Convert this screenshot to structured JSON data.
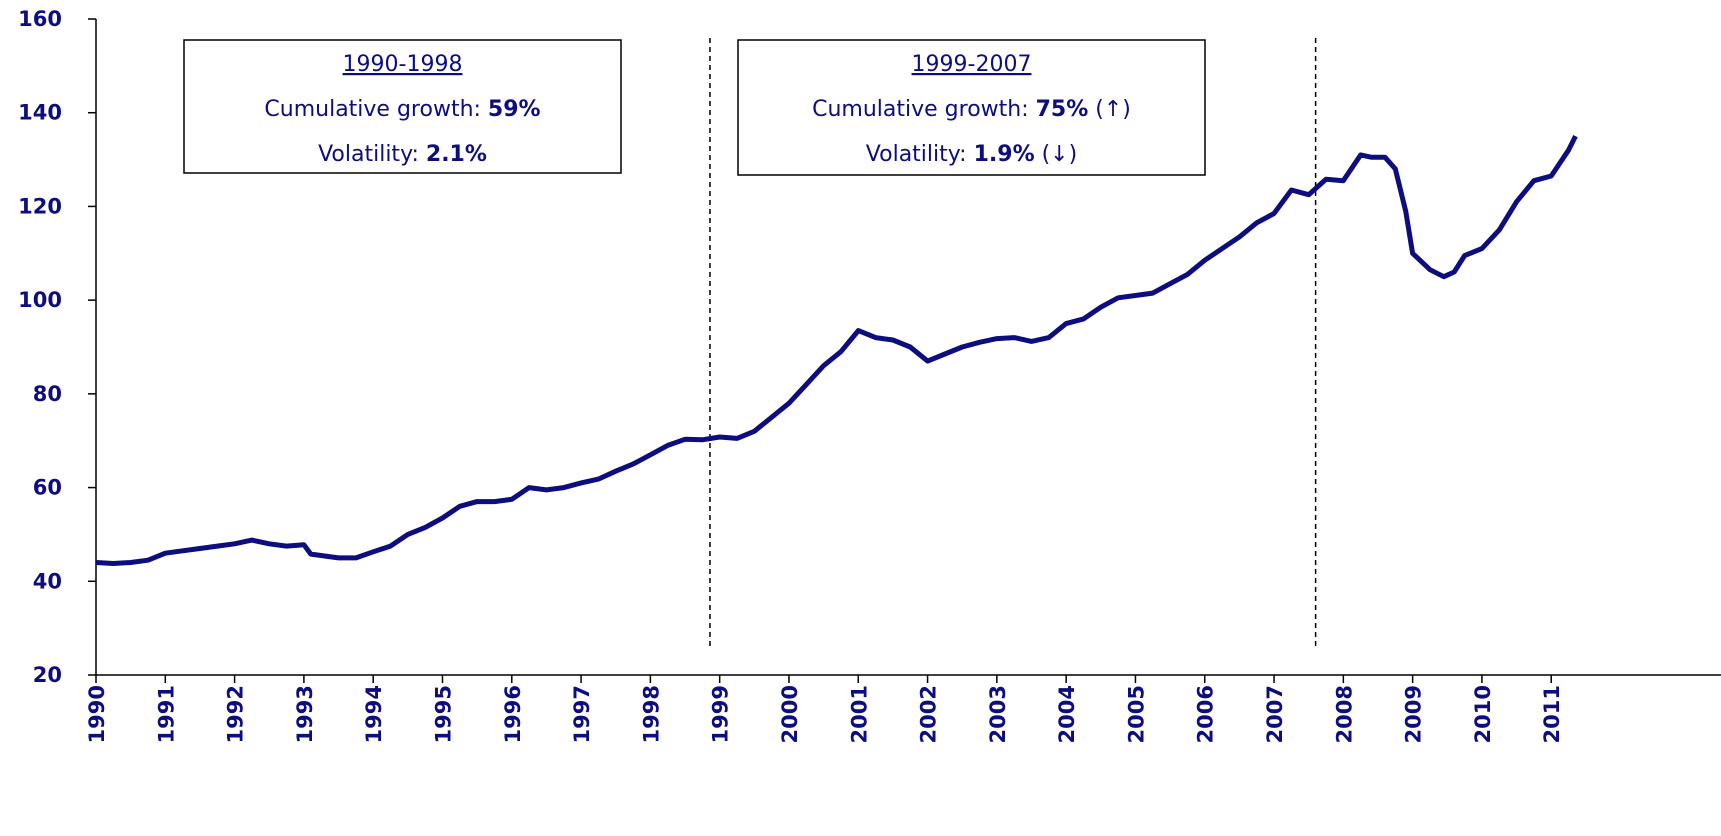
{
  "chart_data": {
    "type": "line",
    "x": [
      1990.0,
      1990.25,
      1990.5,
      1990.75,
      1991.0,
      1991.25,
      1991.5,
      1991.75,
      1992.0,
      1992.25,
      1992.5,
      1992.75,
      1993.0,
      1993.1,
      1993.5,
      1993.75,
      1994.0,
      1994.25,
      1994.5,
      1994.75,
      1995.0,
      1995.25,
      1995.5,
      1995.75,
      1996.0,
      1996.25,
      1996.5,
      1996.75,
      1997.0,
      1997.25,
      1997.5,
      1997.75,
      1998.0,
      1998.25,
      1998.5,
      1998.75,
      1999.0,
      1999.25,
      1999.5,
      1999.75,
      2000.0,
      2000.25,
      2000.5,
      2000.75,
      2001.0,
      2001.25,
      2001.5,
      2001.75,
      2002.0,
      2002.25,
      2002.5,
      2002.75,
      2003.0,
      2003.25,
      2003.5,
      2003.75,
      2004.0,
      2004.25,
      2004.5,
      2004.75,
      2005.0,
      2005.25,
      2005.5,
      2005.75,
      2006.0,
      2006.25,
      2006.5,
      2006.75,
      2007.0,
      2007.25,
      2007.5,
      2007.75,
      2008.0,
      2008.25,
      2008.4,
      2008.6,
      2008.75,
      2008.9,
      2009.0,
      2009.25,
      2009.45,
      2009.6,
      2009.75,
      2010.0,
      2010.25,
      2010.5,
      2010.75,
      2011.0,
      2011.25,
      2011.35
    ],
    "series": [
      {
        "color": "#0d0d80",
        "values": [
          44,
          43.8,
          44,
          44.5,
          46,
          46.5,
          47,
          47.5,
          48,
          48.8,
          48,
          47.5,
          47.8,
          45.8,
          45,
          45,
          46.3,
          47.5,
          50,
          51.5,
          53.5,
          56,
          57,
          57,
          57.5,
          60,
          59.5,
          60,
          61,
          61.8,
          63.5,
          65,
          67,
          69,
          70.3,
          70.2,
          70.8,
          70.5,
          72,
          75,
          78,
          82,
          86,
          89,
          93.5,
          92,
          91.5,
          90,
          87,
          88.5,
          90,
          91,
          91.8,
          92,
          91.2,
          92,
          95,
          96,
          98.5,
          100.5,
          101,
          101.5,
          103.5,
          105.5,
          108.5,
          111,
          113.5,
          116.5,
          118.5,
          123.5,
          122.5,
          125.8,
          125.5,
          131,
          130.5,
          130.5,
          128,
          119,
          110,
          106.5,
          105,
          106,
          109.5,
          111,
          115,
          121,
          125.5,
          126.5,
          132,
          135
        ]
      }
    ],
    "xlim": [
      1990,
      2013.45
    ],
    "xticks": [
      1990,
      1991,
      1992,
      1993,
      1994,
      1995,
      1996,
      1997,
      1998,
      1999,
      2000,
      2001,
      2002,
      2003,
      2004,
      2005,
      2006,
      2007,
      2008,
      2009,
      2010,
      2011
    ],
    "ylim": [
      20,
      160
    ],
    "yticks": [
      20,
      40,
      60,
      80,
      100,
      120,
      140,
      160
    ],
    "dividers": [
      1998.86,
      2007.6
    ],
    "annotations": [
      {
        "title": "1990-1998",
        "lines": [
          {
            "label": "Cumulative growth: ",
            "value": "59%"
          },
          {
            "label": "Volatility: ",
            "value": "2.1%"
          }
        ]
      },
      {
        "title": "1999-2007",
        "lines": [
          {
            "label": "Cumulative growth: ",
            "value": "75%",
            "suffix": " (↑)"
          },
          {
            "label": "Volatility: ",
            "value": "1.9%",
            "suffix": " (↓)"
          }
        ]
      }
    ]
  }
}
